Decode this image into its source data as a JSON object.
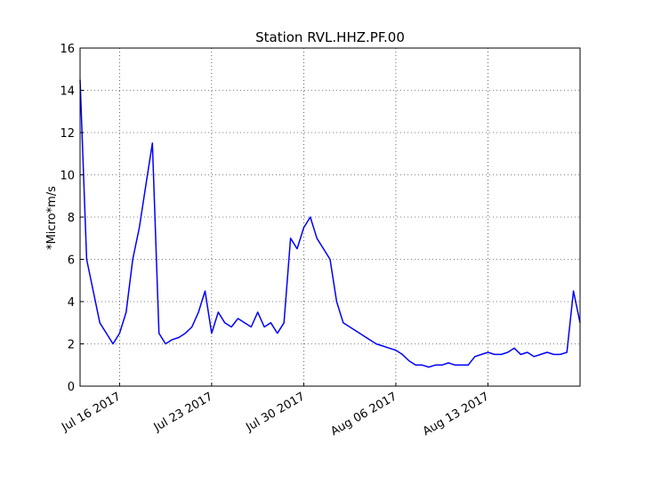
{
  "chart_data": {
    "type": "line",
    "title": "Station RVL.HHZ.PF.00",
    "xlabel": "",
    "ylabel": "*Micro*m/s",
    "ylim": [
      0,
      16
    ],
    "xlim_days_from_label_start": null,
    "xlim": [
      "2017-07-13",
      "2017-08-20"
    ],
    "yticks": [
      "0",
      "2",
      "4",
      "6",
      "8",
      "10",
      "12",
      "14",
      "16"
    ],
    "xticks": [
      "Jul 16 2017",
      "Jul 23 2017",
      "Jul 30 2017",
      "Aug 06 2017",
      "Aug 13 2017"
    ],
    "grid": true,
    "series_color": "#0000ff",
    "series": [
      {
        "x": [
          "2017-07-13",
          "2017-07-13T12:00",
          "2017-07-14",
          "2017-07-14T12:00",
          "2017-07-15",
          "2017-07-15T12:00",
          "2017-07-16",
          "2017-07-16T12:00",
          "2017-07-17",
          "2017-07-17T12:00",
          "2017-07-18",
          "2017-07-18T12:00",
          "2017-07-19",
          "2017-07-19T12:00",
          "2017-07-20",
          "2017-07-20T12:00",
          "2017-07-21",
          "2017-07-21T12:00",
          "2017-07-22",
          "2017-07-22T12:00",
          "2017-07-23",
          "2017-07-23T12:00",
          "2017-07-24",
          "2017-07-24T12:00",
          "2017-07-25",
          "2017-07-25T12:00",
          "2017-07-26",
          "2017-07-26T12:00",
          "2017-07-27",
          "2017-07-27T12:00",
          "2017-07-28",
          "2017-07-28T12:00",
          "2017-07-29",
          "2017-07-29T12:00",
          "2017-07-30",
          "2017-07-30T12:00",
          "2017-07-31",
          "2017-07-31T12:00",
          "2017-08-01",
          "2017-08-01T12:00",
          "2017-08-02",
          "2017-08-02T12:00",
          "2017-08-03",
          "2017-08-03T12:00",
          "2017-08-04",
          "2017-08-04T12:00",
          "2017-08-05",
          "2017-08-05T12:00",
          "2017-08-06",
          "2017-08-06T12:00",
          "2017-08-07",
          "2017-08-07T12:00",
          "2017-08-08",
          "2017-08-08T12:00",
          "2017-08-09",
          "2017-08-09T12:00",
          "2017-08-10",
          "2017-08-10T12:00",
          "2017-08-11",
          "2017-08-11T12:00",
          "2017-08-12",
          "2017-08-12T12:00",
          "2017-08-13",
          "2017-08-13T12:00",
          "2017-08-14",
          "2017-08-14T12:00",
          "2017-08-15",
          "2017-08-15T12:00",
          "2017-08-16",
          "2017-08-16T12:00",
          "2017-08-17",
          "2017-08-17T12:00",
          "2017-08-18",
          "2017-08-18T12:00",
          "2017-08-19",
          "2017-08-19T12:00",
          "2017-08-20"
        ],
        "y": [
          14.5,
          6.0,
          4.5,
          3.0,
          2.5,
          2.0,
          2.5,
          3.5,
          6.0,
          7.5,
          9.5,
          11.5,
          2.5,
          2.0,
          2.2,
          2.3,
          2.5,
          2.8,
          3.5,
          4.5,
          2.5,
          3.5,
          3.0,
          2.8,
          3.2,
          3.0,
          2.8,
          3.5,
          2.8,
          3.0,
          2.5,
          3.0,
          7.0,
          6.5,
          7.5,
          8.0,
          7.0,
          6.5,
          6.0,
          4.0,
          3.0,
          2.8,
          2.6,
          2.4,
          2.2,
          2.0,
          1.9,
          1.8,
          1.7,
          1.5,
          1.2,
          1.0,
          1.0,
          0.9,
          1.0,
          1.0,
          1.1,
          1.0,
          1.0,
          1.0,
          1.4,
          1.5,
          1.6,
          1.5,
          1.5,
          1.6,
          1.8,
          1.5,
          1.6,
          1.4,
          1.5,
          1.6,
          1.5,
          1.5,
          1.6,
          4.5,
          3.0
        ]
      }
    ]
  }
}
